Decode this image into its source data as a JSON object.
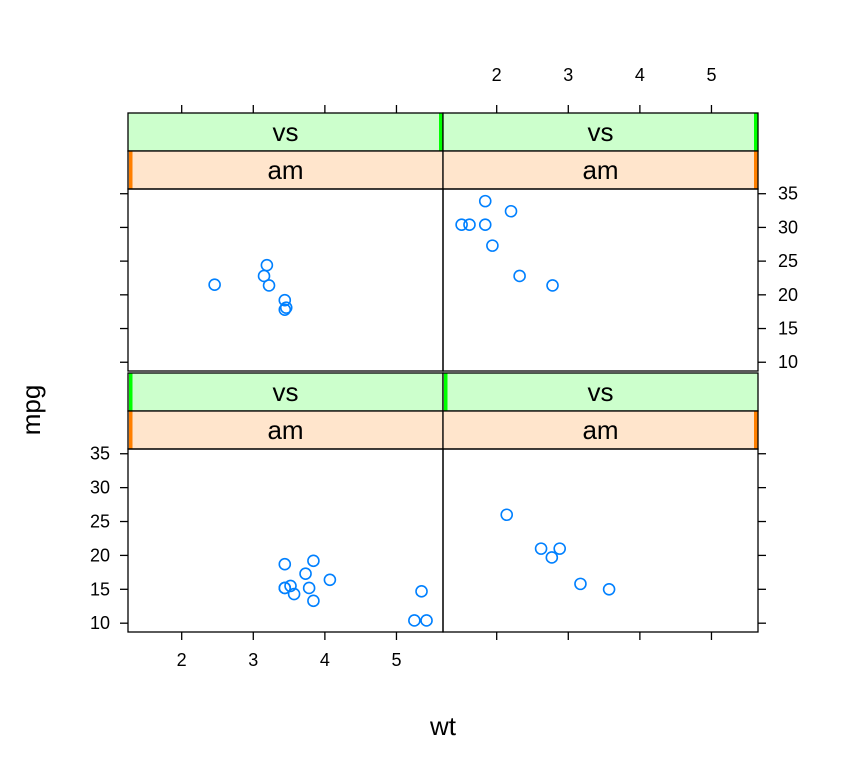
{
  "chart_data": {
    "type": "scatter",
    "xlabel": "wt",
    "ylabel": "mpg",
    "xlim": [
      1.25,
      5.65
    ],
    "ylim": [
      8.7,
      35.7
    ],
    "x_ticks": [
      2,
      3,
      4,
      5
    ],
    "y_ticks": [
      10,
      15,
      20,
      25,
      30,
      35
    ],
    "strip_vars": [
      "vs",
      "am"
    ],
    "colors": {
      "points": "#0080ff",
      "strip_vs": "#ccffcc",
      "strip_am": "#ffe5cc",
      "vs_indicator": "#00ff00",
      "am_indicator": "#ff7f00",
      "frame": "#000000"
    },
    "panels": [
      {
        "id": "bottom-left",
        "row": 0,
        "col": 0,
        "strip_labels": [
          "vs",
          "am"
        ],
        "vs_level": 0,
        "am_level": 0,
        "x": [
          3.44,
          3.52,
          3.44,
          3.57,
          3.73,
          3.78,
          3.84,
          4.07,
          3.84,
          3.44,
          5.25,
          5.42,
          5.35
        ],
        "y": [
          18.7,
          15.5,
          15.2,
          14.3,
          17.3,
          15.2,
          13.3,
          16.4,
          19.2,
          15.2,
          10.4,
          10.4,
          14.7
        ]
      },
      {
        "id": "bottom-right",
        "row": 0,
        "col": 1,
        "strip_labels": [
          "vs",
          "am"
        ],
        "vs_level": 0,
        "am_level": 1,
        "x": [
          2.14,
          2.62,
          2.88,
          2.77,
          3.17,
          3.57
        ],
        "y": [
          26.0,
          21.0,
          21.0,
          19.7,
          15.8,
          15.0
        ]
      },
      {
        "id": "top-left",
        "row": 1,
        "col": 0,
        "strip_labels": [
          "vs",
          "am"
        ],
        "vs_level": 1,
        "am_level": 0,
        "x": [
          2.46,
          3.19,
          3.15,
          3.22,
          3.44,
          3.46,
          3.44
        ],
        "y": [
          21.5,
          24.4,
          22.8,
          21.4,
          19.2,
          18.1,
          17.8
        ]
      },
      {
        "id": "top-right",
        "row": 1,
        "col": 1,
        "strip_labels": [
          "vs",
          "am"
        ],
        "vs_level": 1,
        "am_level": 1,
        "x": [
          1.62,
          1.84,
          2.2,
          1.94,
          1.51,
          1.84,
          2.32,
          2.78
        ],
        "y": [
          30.4,
          33.9,
          32.4,
          27.3,
          30.4,
          30.4,
          22.8,
          21.4
        ]
      }
    ]
  }
}
